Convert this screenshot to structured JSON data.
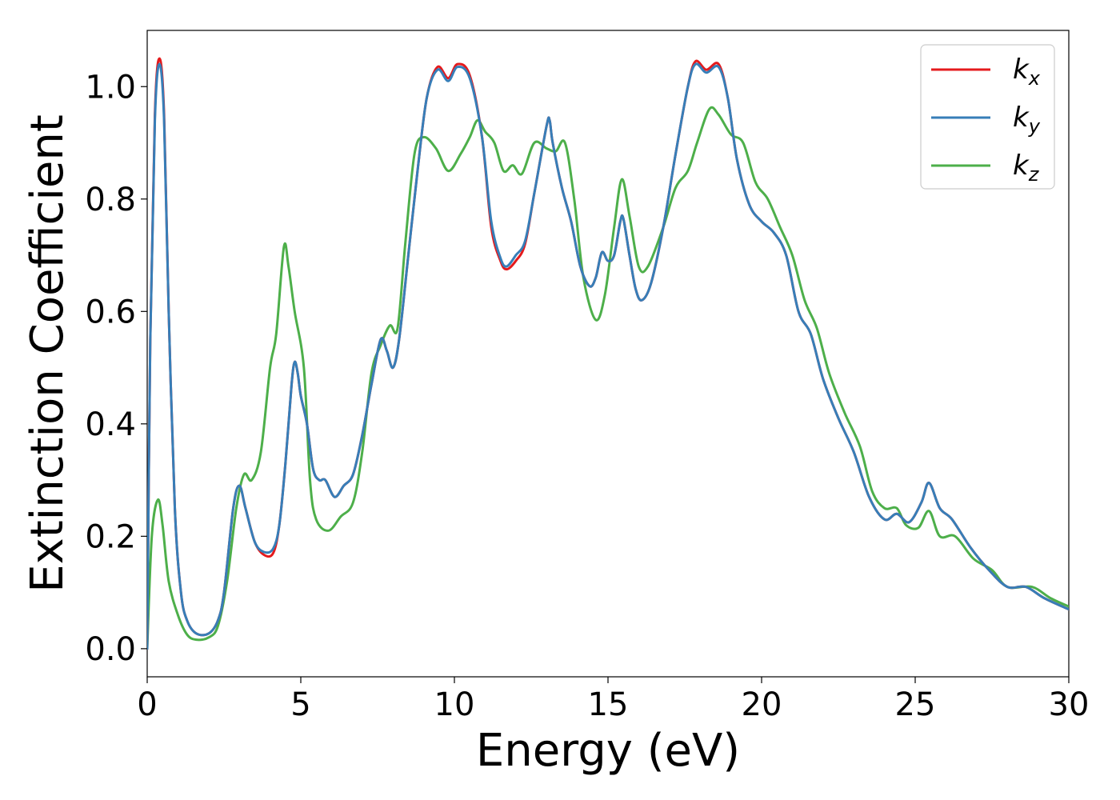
{
  "chart_data": {
    "type": "line",
    "title": "",
    "xlabel": "Energy (eV)",
    "ylabel": "Extinction Coefficient",
    "xlim": [
      0,
      30
    ],
    "ylim": [
      -0.05,
      1.1
    ],
    "xticks": [
      0,
      5,
      10,
      15,
      20,
      25,
      30
    ],
    "xtick_labels": [
      "0",
      "5",
      "10",
      "15",
      "20",
      "25",
      "30"
    ],
    "yticks": [
      0.0,
      0.2,
      0.4,
      0.6,
      0.8,
      1.0
    ],
    "ytick_labels": [
      "0.0",
      "0.2",
      "0.4",
      "0.6",
      "0.8",
      "1.0"
    ],
    "grid": false,
    "legend_position": "top-right",
    "series": [
      {
        "name": "k",
        "subscript": "x",
        "color": "#e41a1c",
        "points": [
          [
            0,
            0.0
          ],
          [
            0.1,
            0.55
          ],
          [
            0.25,
            0.95
          ],
          [
            0.4,
            1.05
          ],
          [
            0.55,
            0.95
          ],
          [
            0.7,
            0.6
          ],
          [
            0.9,
            0.25
          ],
          [
            1.1,
            0.1
          ],
          [
            1.3,
            0.05
          ],
          [
            1.6,
            0.027
          ],
          [
            2.0,
            0.027
          ],
          [
            2.3,
            0.05
          ],
          [
            2.5,
            0.1
          ],
          [
            2.8,
            0.25
          ],
          [
            3.0,
            0.29
          ],
          [
            3.2,
            0.25
          ],
          [
            3.5,
            0.19
          ],
          [
            3.8,
            0.167
          ],
          [
            4.1,
            0.17
          ],
          [
            4.3,
            0.22
          ],
          [
            4.5,
            0.33
          ],
          [
            4.7,
            0.47
          ],
          [
            4.8,
            0.51
          ],
          [
            4.9,
            0.49
          ],
          [
            5.0,
            0.45
          ],
          [
            5.2,
            0.4
          ],
          [
            5.4,
            0.32
          ],
          [
            5.6,
            0.3
          ],
          [
            5.8,
            0.3
          ],
          [
            6.1,
            0.27
          ],
          [
            6.4,
            0.29
          ],
          [
            6.7,
            0.31
          ],
          [
            7.0,
            0.38
          ],
          [
            7.3,
            0.47
          ],
          [
            7.6,
            0.55
          ],
          [
            7.8,
            0.53
          ],
          [
            8.0,
            0.5
          ],
          [
            8.2,
            0.55
          ],
          [
            8.5,
            0.7
          ],
          [
            8.8,
            0.85
          ],
          [
            9.1,
            0.98
          ],
          [
            9.45,
            1.035
          ],
          [
            9.8,
            1.015
          ],
          [
            10.1,
            1.04
          ],
          [
            10.5,
            1.02
          ],
          [
            10.9,
            0.91
          ],
          [
            11.2,
            0.75
          ],
          [
            11.5,
            0.69
          ],
          [
            11.7,
            0.675
          ],
          [
            12.0,
            0.69
          ],
          [
            12.3,
            0.72
          ],
          [
            12.6,
            0.81
          ],
          [
            13.0,
            0.93
          ],
          [
            13.1,
            0.94
          ],
          [
            13.2,
            0.9
          ],
          [
            13.5,
            0.82
          ],
          [
            13.8,
            0.76
          ],
          [
            14.1,
            0.68
          ],
          [
            14.4,
            0.645
          ],
          [
            14.6,
            0.66
          ],
          [
            14.8,
            0.705
          ],
          [
            15.0,
            0.69
          ],
          [
            15.2,
            0.7
          ],
          [
            15.4,
            0.76
          ],
          [
            15.5,
            0.765
          ],
          [
            15.7,
            0.7
          ],
          [
            15.9,
            0.64
          ],
          [
            16.1,
            0.62
          ],
          [
            16.4,
            0.65
          ],
          [
            16.8,
            0.75
          ],
          [
            17.2,
            0.88
          ],
          [
            17.6,
            1.0
          ],
          [
            17.85,
            1.045
          ],
          [
            18.2,
            1.03
          ],
          [
            18.6,
            1.04
          ],
          [
            18.9,
            0.98
          ],
          [
            19.2,
            0.87
          ],
          [
            19.6,
            0.79
          ],
          [
            20.0,
            0.76
          ],
          [
            20.4,
            0.74
          ],
          [
            20.8,
            0.7
          ],
          [
            21.2,
            0.6
          ],
          [
            21.6,
            0.56
          ],
          [
            22.0,
            0.48
          ],
          [
            22.5,
            0.41
          ],
          [
            23.0,
            0.35
          ],
          [
            23.5,
            0.27
          ],
          [
            24.0,
            0.23
          ],
          [
            24.4,
            0.24
          ],
          [
            24.8,
            0.225
          ],
          [
            25.2,
            0.26
          ],
          [
            25.45,
            0.295
          ],
          [
            25.8,
            0.25
          ],
          [
            26.2,
            0.23
          ],
          [
            26.8,
            0.18
          ],
          [
            27.4,
            0.14
          ],
          [
            28.0,
            0.11
          ],
          [
            28.6,
            0.11
          ],
          [
            29.2,
            0.09
          ],
          [
            30.0,
            0.07
          ]
        ]
      },
      {
        "name": "k",
        "subscript": "y",
        "color": "#377eb8",
        "points": [
          [
            0,
            0.0
          ],
          [
            0.1,
            0.55
          ],
          [
            0.25,
            0.94
          ],
          [
            0.4,
            1.04
          ],
          [
            0.55,
            0.94
          ],
          [
            0.7,
            0.6
          ],
          [
            0.9,
            0.25
          ],
          [
            1.1,
            0.1
          ],
          [
            1.3,
            0.05
          ],
          [
            1.6,
            0.027
          ],
          [
            2.0,
            0.027
          ],
          [
            2.3,
            0.05
          ],
          [
            2.5,
            0.1
          ],
          [
            2.8,
            0.25
          ],
          [
            3.0,
            0.29
          ],
          [
            3.2,
            0.25
          ],
          [
            3.5,
            0.19
          ],
          [
            3.8,
            0.172
          ],
          [
            4.1,
            0.178
          ],
          [
            4.3,
            0.22
          ],
          [
            4.5,
            0.33
          ],
          [
            4.7,
            0.47
          ],
          [
            4.8,
            0.51
          ],
          [
            4.9,
            0.49
          ],
          [
            5.0,
            0.45
          ],
          [
            5.2,
            0.4
          ],
          [
            5.4,
            0.32
          ],
          [
            5.6,
            0.3
          ],
          [
            5.8,
            0.3
          ],
          [
            6.1,
            0.27
          ],
          [
            6.4,
            0.29
          ],
          [
            6.7,
            0.31
          ],
          [
            7.0,
            0.38
          ],
          [
            7.3,
            0.47
          ],
          [
            7.6,
            0.55
          ],
          [
            7.8,
            0.53
          ],
          [
            8.0,
            0.5
          ],
          [
            8.2,
            0.55
          ],
          [
            8.5,
            0.7
          ],
          [
            8.8,
            0.85
          ],
          [
            9.1,
            0.98
          ],
          [
            9.45,
            1.03
          ],
          [
            9.8,
            1.01
          ],
          [
            10.1,
            1.035
          ],
          [
            10.5,
            1.015
          ],
          [
            10.9,
            0.91
          ],
          [
            11.2,
            0.76
          ],
          [
            11.5,
            0.695
          ],
          [
            11.7,
            0.68
          ],
          [
            12.0,
            0.7
          ],
          [
            12.3,
            0.725
          ],
          [
            12.6,
            0.81
          ],
          [
            13.0,
            0.93
          ],
          [
            13.1,
            0.94
          ],
          [
            13.2,
            0.9
          ],
          [
            13.5,
            0.82
          ],
          [
            13.8,
            0.76
          ],
          [
            14.1,
            0.68
          ],
          [
            14.4,
            0.645
          ],
          [
            14.6,
            0.66
          ],
          [
            14.8,
            0.705
          ],
          [
            15.0,
            0.69
          ],
          [
            15.2,
            0.7
          ],
          [
            15.4,
            0.76
          ],
          [
            15.5,
            0.765
          ],
          [
            15.7,
            0.7
          ],
          [
            15.9,
            0.64
          ],
          [
            16.1,
            0.62
          ],
          [
            16.4,
            0.65
          ],
          [
            16.8,
            0.75
          ],
          [
            17.2,
            0.88
          ],
          [
            17.6,
            1.0
          ],
          [
            17.85,
            1.04
          ],
          [
            18.2,
            1.025
          ],
          [
            18.6,
            1.035
          ],
          [
            18.9,
            0.98
          ],
          [
            19.2,
            0.87
          ],
          [
            19.6,
            0.79
          ],
          [
            20.0,
            0.76
          ],
          [
            20.4,
            0.74
          ],
          [
            20.8,
            0.7
          ],
          [
            21.2,
            0.6
          ],
          [
            21.6,
            0.56
          ],
          [
            22.0,
            0.48
          ],
          [
            22.5,
            0.41
          ],
          [
            23.0,
            0.35
          ],
          [
            23.5,
            0.27
          ],
          [
            24.0,
            0.23
          ],
          [
            24.4,
            0.24
          ],
          [
            24.8,
            0.225
          ],
          [
            25.2,
            0.26
          ],
          [
            25.45,
            0.295
          ],
          [
            25.8,
            0.25
          ],
          [
            26.2,
            0.23
          ],
          [
            26.8,
            0.18
          ],
          [
            27.4,
            0.14
          ],
          [
            28.0,
            0.11
          ],
          [
            28.6,
            0.11
          ],
          [
            29.2,
            0.09
          ],
          [
            30.0,
            0.07
          ]
        ]
      },
      {
        "name": "k",
        "subscript": "z",
        "color": "#4daf4a",
        "points": [
          [
            0,
            0.0
          ],
          [
            0.15,
            0.2
          ],
          [
            0.35,
            0.265
          ],
          [
            0.5,
            0.22
          ],
          [
            0.7,
            0.12
          ],
          [
            1.0,
            0.06
          ],
          [
            1.3,
            0.025
          ],
          [
            1.6,
            0.016
          ],
          [
            2.0,
            0.02
          ],
          [
            2.3,
            0.04
          ],
          [
            2.6,
            0.12
          ],
          [
            2.9,
            0.25
          ],
          [
            3.15,
            0.31
          ],
          [
            3.4,
            0.3
          ],
          [
            3.7,
            0.35
          ],
          [
            4.0,
            0.5
          ],
          [
            4.2,
            0.56
          ],
          [
            4.45,
            0.715
          ],
          [
            4.6,
            0.68
          ],
          [
            4.8,
            0.6
          ],
          [
            5.1,
            0.5
          ],
          [
            5.3,
            0.3
          ],
          [
            5.5,
            0.23
          ],
          [
            5.9,
            0.21
          ],
          [
            6.3,
            0.235
          ],
          [
            6.7,
            0.26
          ],
          [
            7.0,
            0.35
          ],
          [
            7.3,
            0.49
          ],
          [
            7.6,
            0.54
          ],
          [
            7.9,
            0.575
          ],
          [
            8.15,
            0.57
          ],
          [
            8.4,
            0.72
          ],
          [
            8.7,
            0.88
          ],
          [
            9.0,
            0.91
          ],
          [
            9.4,
            0.89
          ],
          [
            9.8,
            0.85
          ],
          [
            10.2,
            0.88
          ],
          [
            10.5,
            0.91
          ],
          [
            10.75,
            0.94
          ],
          [
            11.0,
            0.92
          ],
          [
            11.3,
            0.9
          ],
          [
            11.6,
            0.85
          ],
          [
            11.9,
            0.86
          ],
          [
            12.2,
            0.845
          ],
          [
            12.6,
            0.9
          ],
          [
            13.0,
            0.89
          ],
          [
            13.3,
            0.885
          ],
          [
            13.6,
            0.9
          ],
          [
            13.9,
            0.8
          ],
          [
            14.2,
            0.66
          ],
          [
            14.6,
            0.585
          ],
          [
            14.9,
            0.63
          ],
          [
            15.2,
            0.75
          ],
          [
            15.45,
            0.835
          ],
          [
            15.7,
            0.77
          ],
          [
            16.0,
            0.68
          ],
          [
            16.3,
            0.68
          ],
          [
            16.8,
            0.75
          ],
          [
            17.2,
            0.82
          ],
          [
            17.6,
            0.85
          ],
          [
            17.9,
            0.9
          ],
          [
            18.3,
            0.96
          ],
          [
            18.6,
            0.95
          ],
          [
            19.0,
            0.915
          ],
          [
            19.4,
            0.9
          ],
          [
            19.8,
            0.83
          ],
          [
            20.2,
            0.8
          ],
          [
            20.6,
            0.75
          ],
          [
            21.0,
            0.7
          ],
          [
            21.4,
            0.62
          ],
          [
            21.8,
            0.57
          ],
          [
            22.2,
            0.49
          ],
          [
            22.7,
            0.42
          ],
          [
            23.2,
            0.36
          ],
          [
            23.6,
            0.28
          ],
          [
            24.0,
            0.25
          ],
          [
            24.4,
            0.25
          ],
          [
            24.7,
            0.22
          ],
          [
            25.1,
            0.215
          ],
          [
            25.45,
            0.245
          ],
          [
            25.8,
            0.2
          ],
          [
            26.3,
            0.2
          ],
          [
            26.9,
            0.16
          ],
          [
            27.5,
            0.14
          ],
          [
            28.0,
            0.11
          ],
          [
            28.8,
            0.11
          ],
          [
            29.4,
            0.09
          ],
          [
            30.0,
            0.075
          ]
        ]
      }
    ]
  }
}
